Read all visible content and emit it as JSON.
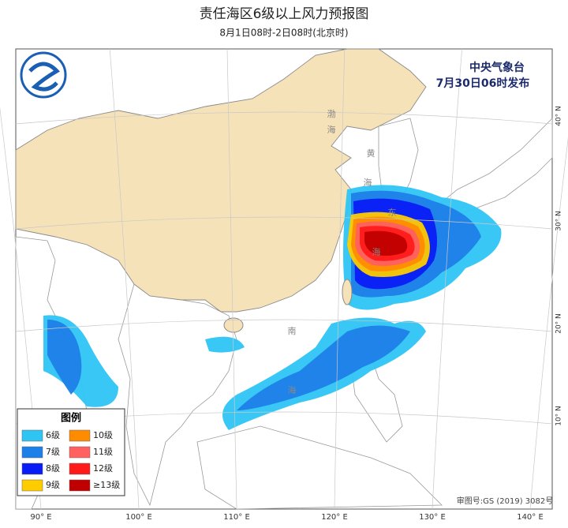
{
  "header": {
    "title": "责任海区6级以上风力预报图",
    "subtitle": "8月1日08时-2日08时(北京时)"
  },
  "issuer": {
    "agency": "中央气象台",
    "issued": "7月30日06时发布"
  },
  "legend": {
    "title": "图例",
    "items": [
      {
        "label": "6级",
        "color": "#2ec5f4"
      },
      {
        "label": "7级",
        "color": "#1d7fe8"
      },
      {
        "label": "8级",
        "color": "#0a1cf5"
      },
      {
        "label": "9级",
        "color": "#ffcc00"
      },
      {
        "label": "10级",
        "color": "#ff8c00"
      },
      {
        "label": "11级",
        "color": "#ff6060"
      },
      {
        "label": "12级",
        "color": "#ff1a1a"
      },
      {
        "label": "≥13级",
        "color": "#c00000"
      }
    ]
  },
  "lon_labels": [
    "90° E",
    "100° E",
    "110° E",
    "120° E",
    "130° E",
    "140° E"
  ],
  "lat_labels": [
    "40° N",
    "30° N",
    "20° N",
    "10° N"
  ],
  "sea_labels": [
    "渤",
    "海",
    "黄",
    "海",
    "东",
    "海",
    "南",
    "海"
  ],
  "map_number": "审图号:GS (2019) 3082号"
}
